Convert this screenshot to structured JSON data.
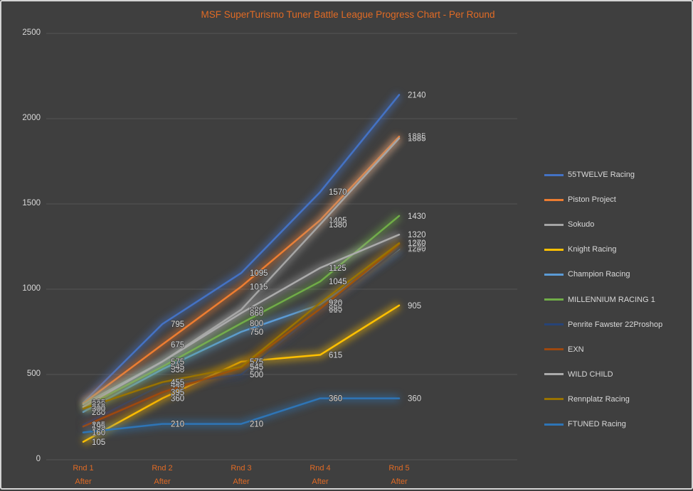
{
  "chart": {
    "background_color": "#3f3f3f",
    "gridline_color": "#555555",
    "axis_text_color": "#d9d9d9",
    "data_label_color": "#d9d9d9",
    "category_text_color": "#e16b25",
    "title_color": "#e16b25"
  },
  "chart_data": {
    "type": "line",
    "title": "MSF SuperTurismo Tuner Battle League Progress Chart - Per Round",
    "categories": [
      "Rnd 1",
      "Rnd 2",
      "Rnd 3",
      "Rnd 4",
      "Rnd 5"
    ],
    "category_sublabel": "After",
    "ylim": [
      0,
      2500
    ],
    "yticks": [
      0,
      500,
      1000,
      1500,
      2000,
      2500
    ],
    "grid": true,
    "legend_position": "right",
    "series": [
      {
        "name": "55TWELVE Racing",
        "color": "#4472C4",
        "values": [
          335,
          795,
          1095,
          1570,
          2140
        ]
      },
      {
        "name": "Piston Project",
        "color": "#ED7D31",
        "values": [
          330,
          675,
          1015,
          1405,
          1895
        ]
      },
      {
        "name": "Sokudo",
        "color": "#A5A5A5",
        "values": [
          325,
          575,
          880,
          1380,
          1885
        ]
      },
      {
        "name": "Knight Racing",
        "color": "#FFC000",
        "values": [
          105,
          360,
          575,
          615,
          905
        ]
      },
      {
        "name": "Champion Racing",
        "color": "#5B9BD5",
        "values": [
          280,
          530,
          750,
          910,
          1235
        ]
      },
      {
        "name": "MILLENNIUM RACING 1",
        "color": "#70AD47",
        "values": [
          305,
          545,
          800,
          1045,
          1430
        ]
      },
      {
        "name": "Penrite Fawster 22Proshop",
        "color": "#264478",
        "values": [
          205,
          440,
          500,
          880,
          1240
        ]
      },
      {
        "name": "EXN",
        "color": "#9E480E",
        "values": [
          195,
          395,
          540,
          885,
          1265
        ]
      },
      {
        "name": "WILD CHILD",
        "color": "#ABABAB",
        "values": [
          310,
          575,
          860,
          1125,
          1320
        ]
      },
      {
        "name": "Rennplatz Racing",
        "color": "#997300",
        "values": [
          300,
          455,
          545,
          920,
          1270
        ]
      },
      {
        "name": "FTUNED Racing",
        "color": "#2E75B6",
        "values": [
          160,
          210,
          210,
          360,
          360
        ]
      }
    ]
  }
}
